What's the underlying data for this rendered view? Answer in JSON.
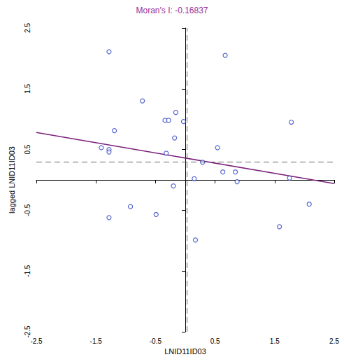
{
  "chart_data": {
    "type": "scatter",
    "title": "Moran's I: -0.16837",
    "x_label": "LNID11ID03",
    "y_label": "lagged LNID11ID03",
    "x": [
      -1.28,
      0.67,
      -0.72,
      -0.16,
      -1.19,
      -0.34,
      -0.28,
      -0.03,
      -0.18,
      1.78,
      -1.41,
      -1.28,
      -1.28,
      -0.32,
      0.54,
      0.29,
      0.63,
      0.84,
      0.15,
      0.87,
      1.75,
      -0.2,
      -0.92,
      -1.28,
      -0.49,
      2.08,
      1.58,
      0.17
    ],
    "values": [
      2.11,
      2.05,
      1.3,
      1.11,
      0.81,
      0.98,
      0.98,
      0.96,
      0.69,
      0.95,
      0.53,
      0.5,
      0.46,
      0.44,
      0.53,
      0.29,
      0.13,
      0.13,
      0.02,
      -0.03,
      0.03,
      -0.1,
      -0.44,
      -0.62,
      -0.57,
      -0.4,
      -0.77,
      -0.99
    ],
    "color": "#2b3fc4",
    "marker": "hollow circle",
    "xlim": [
      -2.5,
      2.5
    ],
    "ylim": [
      -2.5,
      2.5
    ],
    "xticks": [
      -2.5,
      -1.5,
      -0.5,
      0.5,
      1.5,
      2.5
    ],
    "yticks": [
      -2.5,
      -1.5,
      -0.5,
      0.5,
      1.5,
      2.5
    ],
    "grid": false,
    "regression_line": {
      "x": [
        -2.5,
        2.5
      ],
      "y": [
        0.78,
        -0.06
      ],
      "color": "#7b1f7b"
    },
    "reference_lines": {
      "x": 0.03,
      "y": 0.3,
      "line_style": "dashed"
    }
  }
}
